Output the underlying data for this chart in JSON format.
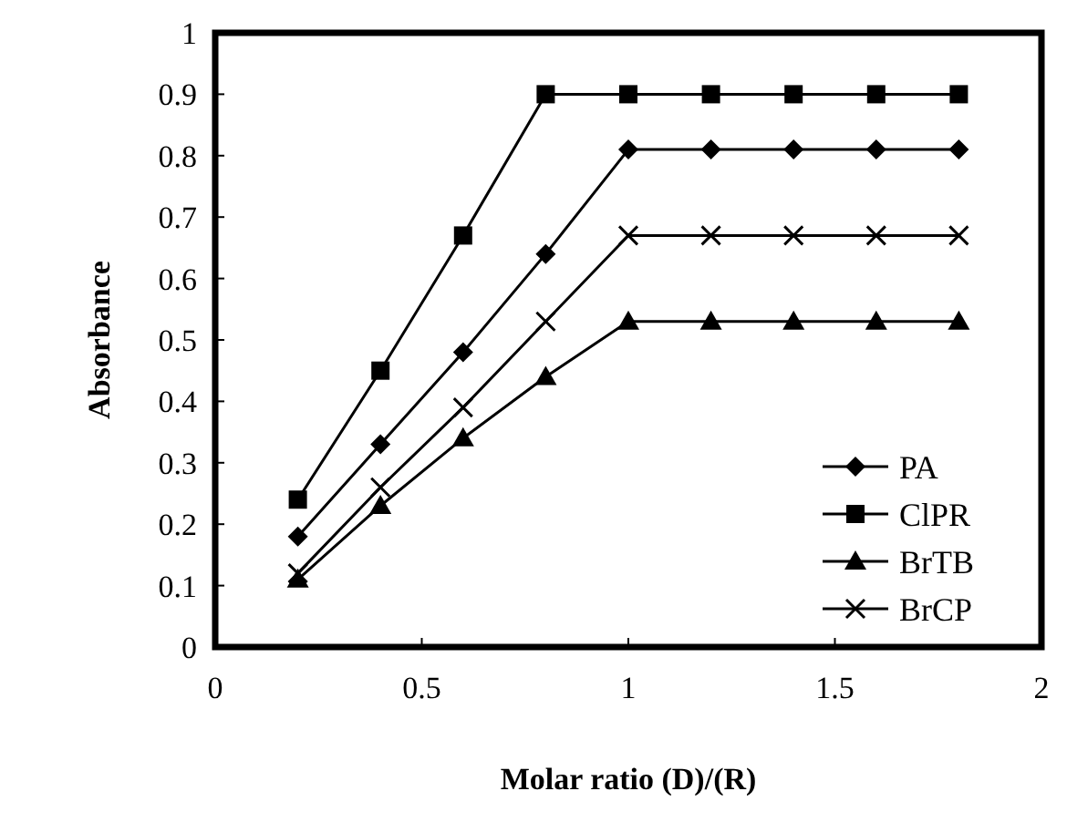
{
  "chart_data": {
    "type": "line",
    "xlabel": "Molar ratio (D)/(R)",
    "ylabel": "Absorbance",
    "x": [
      0.2,
      0.4,
      0.6,
      0.8,
      1,
      1.2,
      1.4,
      1.6,
      1.8
    ],
    "series": [
      {
        "name": "PA",
        "color": "#000000",
        "marker": "diamond",
        "values": [
          0.18,
          0.33,
          0.48,
          0.64,
          0.81,
          0.81,
          0.81,
          0.81,
          0.81
        ]
      },
      {
        "name": "ClPR",
        "color": "#000000",
        "marker": "square",
        "values": [
          0.24,
          0.45,
          0.67,
          0.9,
          0.9,
          0.9,
          0.9,
          0.9,
          0.9
        ]
      },
      {
        "name": "BrTB",
        "color": "#000000",
        "marker": "triangle",
        "values": [
          0.11,
          0.23,
          0.34,
          0.44,
          0.53,
          0.53,
          0.53,
          0.53,
          0.53
        ]
      },
      {
        "name": "BrCP",
        "color": "#000000",
        "marker": "cross",
        "values": [
          0.12,
          0.26,
          0.39,
          0.53,
          0.67,
          0.67,
          0.67,
          0.67,
          0.67
        ]
      }
    ],
    "xlim": [
      0,
      2
    ],
    "xticks": [
      0,
      0.5,
      1,
      1.5,
      2
    ],
    "ylim": [
      0,
      1
    ],
    "yticks": [
      0,
      0.1,
      0.2,
      0.3,
      0.4,
      0.5,
      0.6,
      0.7,
      0.8,
      0.9,
      1
    ],
    "legend": "bottom right",
    "grid": false
  }
}
